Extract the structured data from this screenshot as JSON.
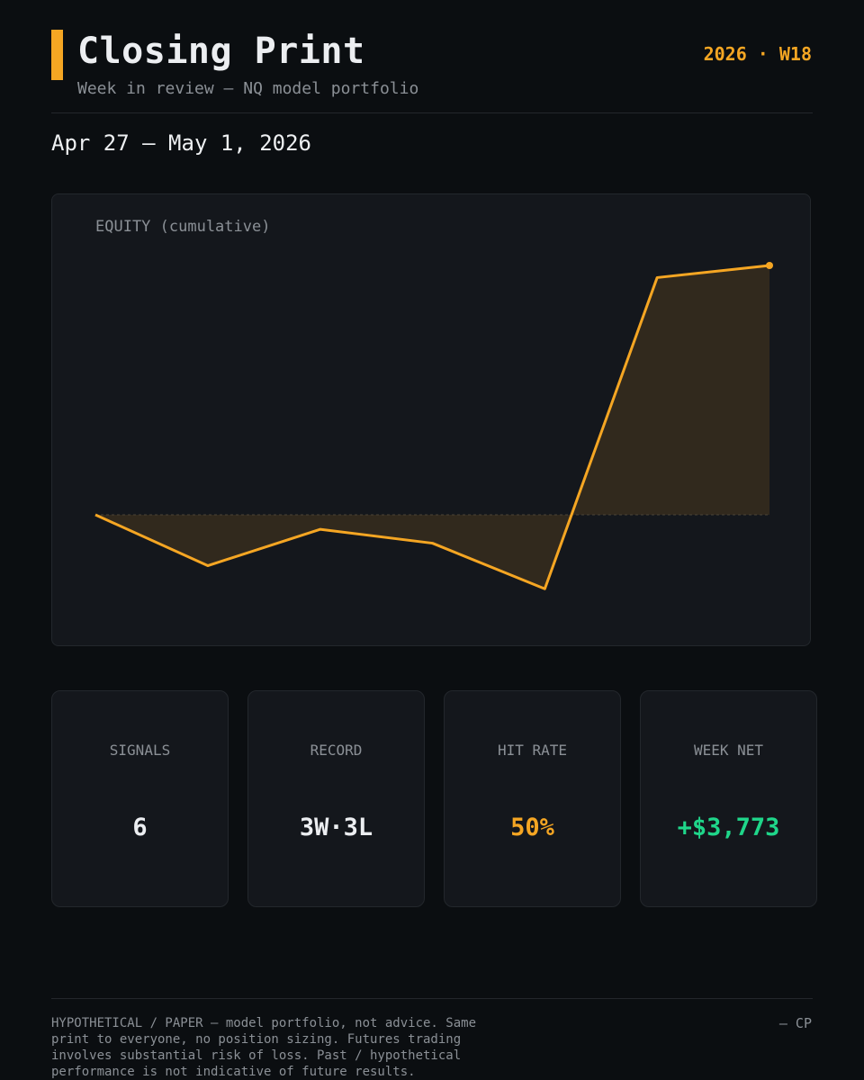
{
  "header": {
    "title": "Closing Print",
    "subtitle": "Week in review — NQ model portfolio",
    "week_tag": "2026 · W18",
    "date_range": "Apr 27 – May 1, 2026"
  },
  "chart": {
    "label": "EQUITY (cumulative)"
  },
  "colors": {
    "background": "#0b0e11",
    "card": "#14171c",
    "accent": "#f5a623",
    "positive": "#1fd68a",
    "muted": "#8b9096"
  },
  "stats": [
    {
      "label": "SIGNALS",
      "value": "6"
    },
    {
      "label": "RECORD",
      "value": "3W·3L"
    },
    {
      "label": "HIT RATE",
      "value": "50%"
    },
    {
      "label": "WEEK NET",
      "value": "+$3,773"
    }
  ],
  "footer": {
    "disclaimer": "HYPOTHETICAL / PAPER — model portfolio, not advice. Same\nprint to everyone, no position sizing. Futures trading\ninvolves substantial risk of loss. Past / hypothetical\nperformance is not indicative of future results.",
    "signature": "— CP"
  },
  "chart_data": {
    "type": "area",
    "title": "EQUITY (cumulative)",
    "x": [
      0,
      1,
      2,
      3,
      4,
      5,
      6
    ],
    "values": [
      0,
      -770,
      -220,
      -430,
      -1120,
      3590,
      3773
    ],
    "baseline": 0,
    "grid": false,
    "legend": "none",
    "line_color": "#f5a623",
    "end_marker": true
  }
}
